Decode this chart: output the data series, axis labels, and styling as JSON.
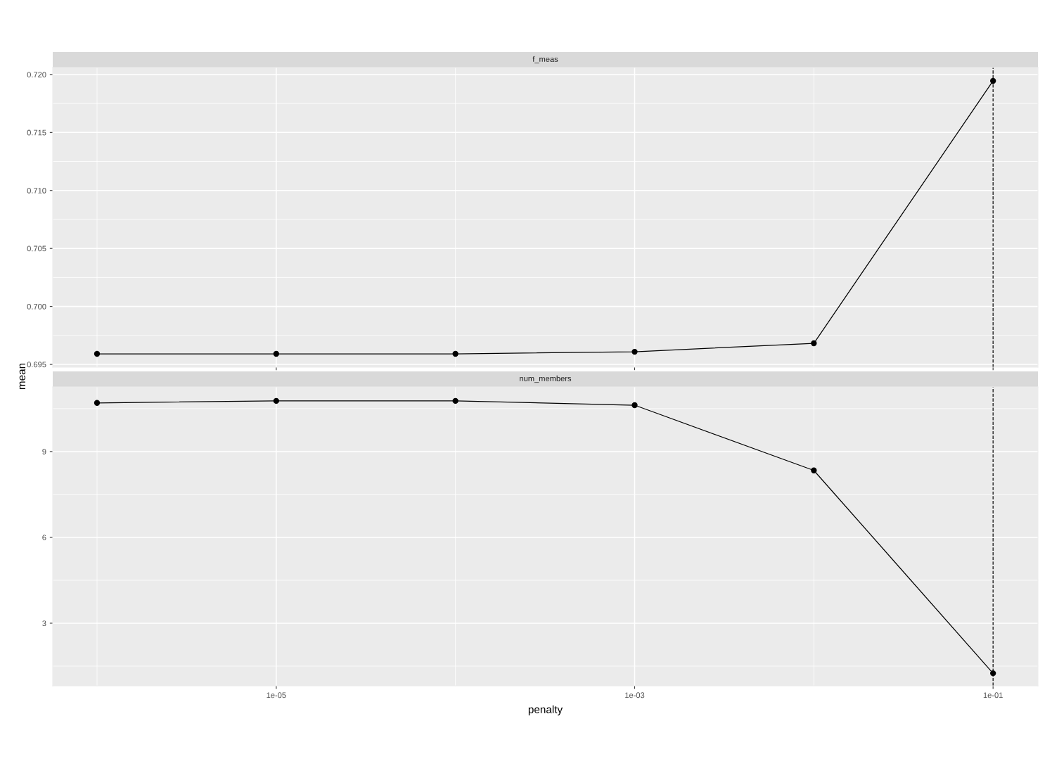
{
  "chart_data": [
    {
      "type": "line",
      "title": "f_meas",
      "ylabel": "mean",
      "x": [
        1e-06,
        1e-05,
        0.0001,
        0.001,
        0.01,
        0.1
      ],
      "log": "x",
      "marker": "circle",
      "line_style": "solid",
      "grid": true,
      "tick_labels": "y",
      "series": [
        {
          "color": "#000000",
          "values": [
            0.69591,
            0.69591,
            0.69591,
            0.69609,
            0.69682,
            0.71945
          ]
        }
      ],
      "xlim": [
        5.66e-07,
        0.178
      ],
      "xticks": [
        {
          "value": 1e-05,
          "label": null
        },
        {
          "value": 0.001,
          "label": null
        },
        {
          "value": 0.1,
          "label": null
        }
      ],
      "ylim": [
        0.69476,
        0.7206
      ],
      "yticks": [
        {
          "value": 0.695,
          "label": "0.695"
        },
        {
          "value": 0.7,
          "label": "0.700"
        },
        {
          "value": 0.705,
          "label": "0.705"
        },
        {
          "value": 0.71,
          "label": "0.710"
        },
        {
          "value": 0.715,
          "label": "0.715"
        },
        {
          "value": 0.72,
          "label": "0.720"
        }
      ],
      "ref_lines": [
        {
          "axis": "x",
          "value": 0.1,
          "color": "#000000",
          "line_style": "dashed"
        }
      ]
    },
    {
      "type": "line",
      "title": "num_members",
      "xlabel": "penalty",
      "x": [
        1e-06,
        1e-05,
        0.0001,
        0.001,
        0.01,
        0.1
      ],
      "log": "x",
      "marker": "circle",
      "line_style": "solid",
      "grid": true,
      "series": [
        {
          "color": "#000000",
          "values": [
            10.7,
            10.77,
            10.77,
            10.62,
            8.34,
            1.25
          ]
        }
      ],
      "xlim": [
        5.66e-07,
        0.178
      ],
      "xticks": [
        {
          "value": 1e-05,
          "label": "1e-05"
        },
        {
          "value": 0.001,
          "label": "1e-03"
        },
        {
          "value": 0.1,
          "label": "1e-01"
        }
      ],
      "ylim": [
        0.81,
        11.26
      ],
      "yticks": [
        3,
        6,
        9
      ],
      "ref_lines": [
        {
          "axis": "x",
          "value": 0.1,
          "color": "#000000",
          "line_style": "dashed"
        }
      ]
    }
  ]
}
